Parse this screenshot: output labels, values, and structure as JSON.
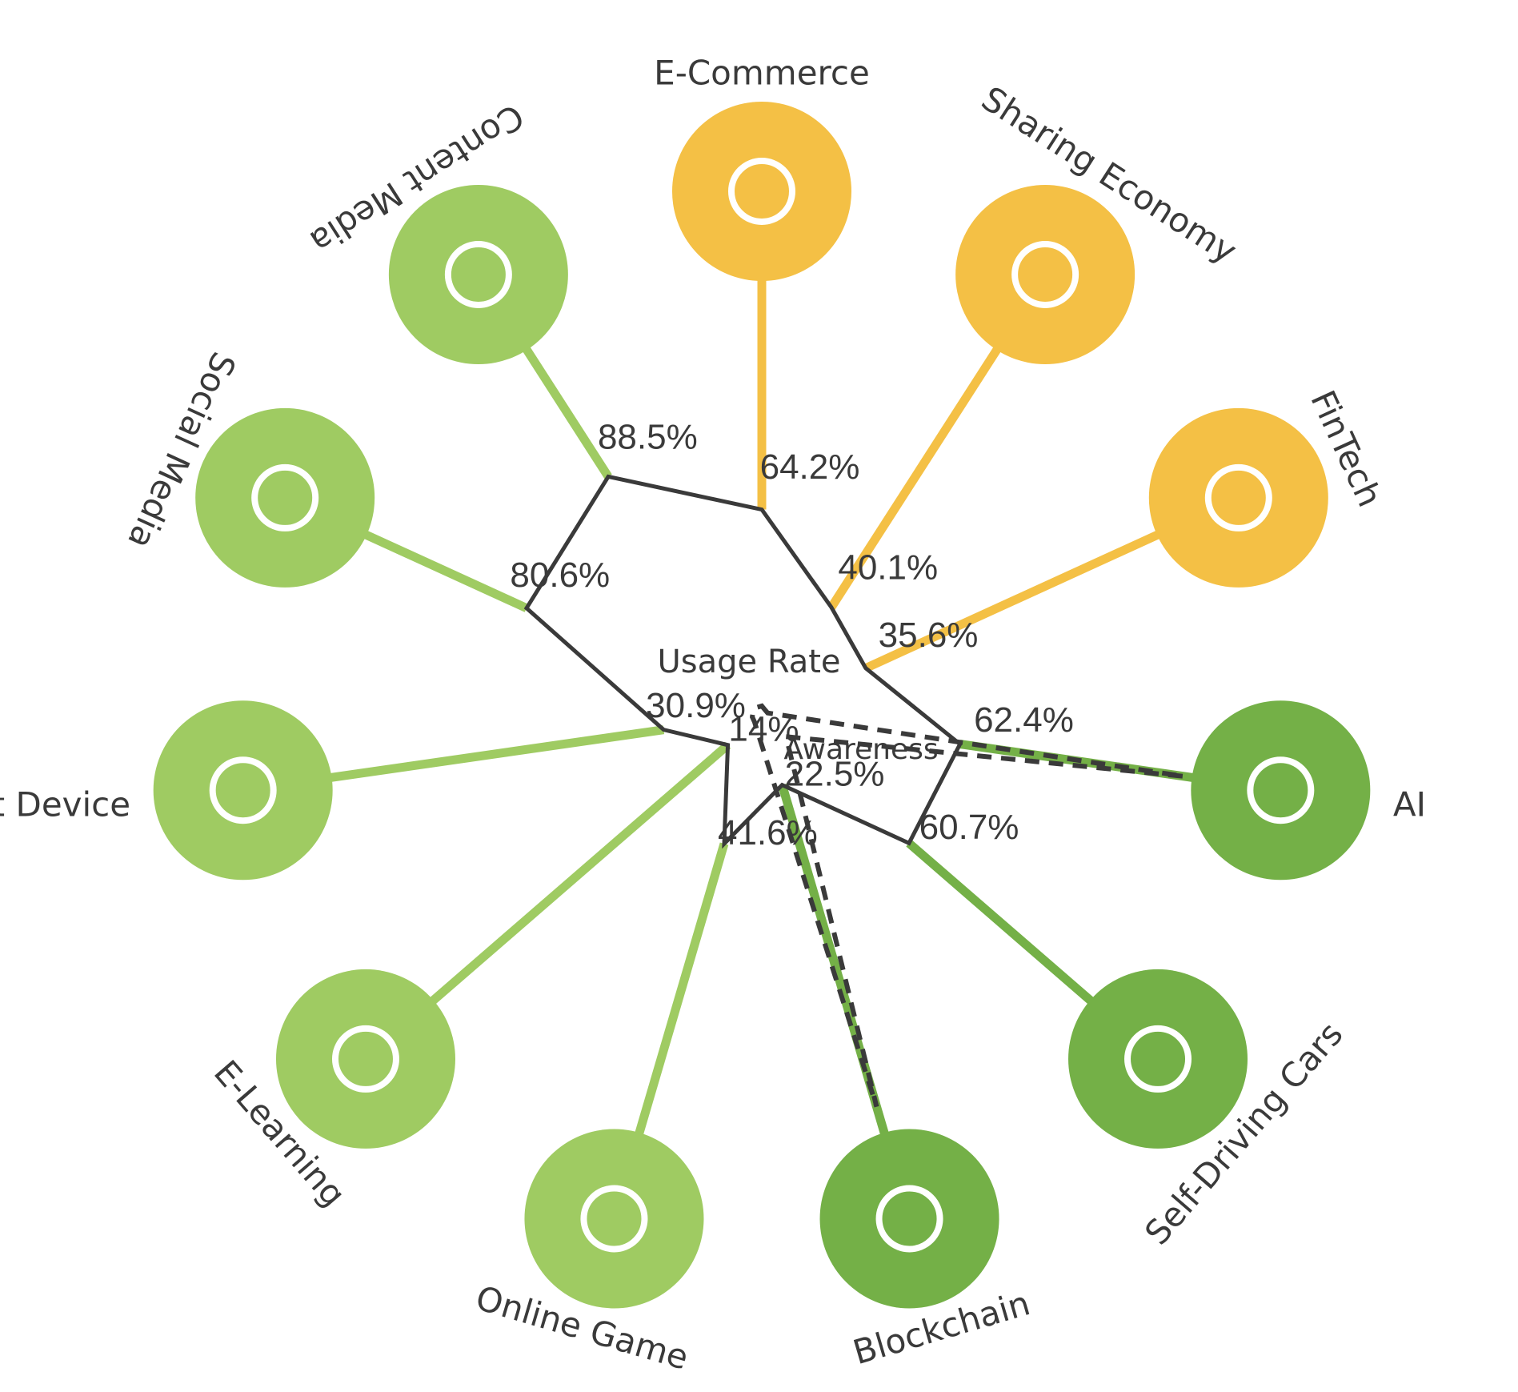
{
  "chart_data": {
    "type": "radial",
    "categories": [
      "E-Commerce",
      "Sharing Economy",
      "FinTech",
      "AI",
      "Self-Driving Cars",
      "Blockchain",
      "Online Game",
      "E-Learning",
      "Smart Device",
      "Social Media",
      "Content Media"
    ],
    "category_colors": [
      "#f4c045",
      "#f4c045",
      "#f4c045",
      "#74b047",
      "#74b047",
      "#74b047",
      "#9fcb62",
      "#9fcb62",
      "#9fcb62",
      "#9fcb62",
      "#9fcb62"
    ],
    "series": [
      {
        "name": "Usage Rate",
        "color": "#3a3a3a",
        "values": [
          64.2,
          40.1,
          35.6,
          62.4,
          60.7,
          22.5,
          41.6,
          14,
          30.9,
          80.6,
          88.5
        ],
        "value_labels": [
          "64.2%",
          "40.1%",
          "35.6%",
          "62.4%",
          "60.7%",
          "22.5%",
          "41.6%",
          "14%",
          "30.9%",
          "80.6%",
          "88.5%"
        ]
      },
      {
        "name": "Awareness",
        "color": "#3a3a3a",
        "dashed": true,
        "values": [
          3,
          2,
          2,
          133,
          10,
          127,
          5,
          3,
          3,
          3,
          3
        ]
      }
    ],
    "rlim": [
      0,
      100
    ]
  }
}
